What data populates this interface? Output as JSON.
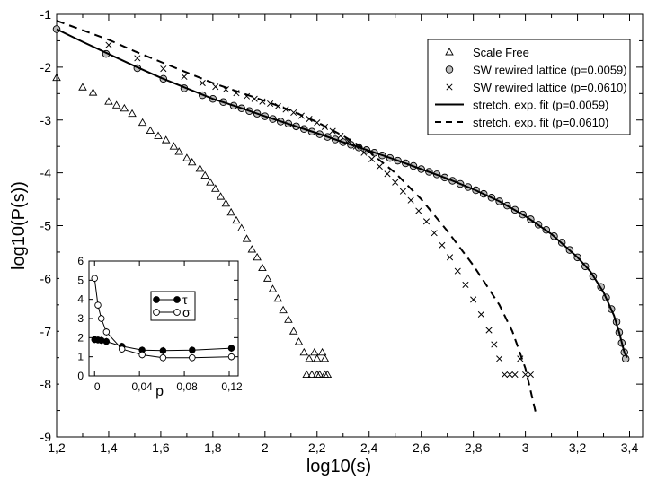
{
  "chart_data": [
    {
      "type": "scatter",
      "title": "",
      "xlabel": "log10(s)",
      "ylabel": "log10(P(s))",
      "xlim": [
        1.2,
        3.45
      ],
      "ylim": [
        -9,
        -1
      ],
      "xticks": [
        "1,2",
        "1,4",
        "1,6",
        "1,8",
        "2",
        "2,2",
        "2,4",
        "2,6",
        "2,8",
        "3",
        "3,2",
        "3,4"
      ],
      "yticks": [
        "-1",
        "-2",
        "-3",
        "-4",
        "-5",
        "-6",
        "-7",
        "-8",
        "-9"
      ],
      "legend_position": "top-right",
      "series": [
        {
          "name": "Scale Free",
          "marker": "triangle",
          "points": [
            [
              1.2,
              -2.2
            ],
            [
              1.3,
              -2.38
            ],
            [
              1.34,
              -2.48
            ],
            [
              1.4,
              -2.65
            ],
            [
              1.43,
              -2.72
            ],
            [
              1.46,
              -2.78
            ],
            [
              1.49,
              -2.88
            ],
            [
              1.53,
              -3.05
            ],
            [
              1.56,
              -3.2
            ],
            [
              1.59,
              -3.3
            ],
            [
              1.62,
              -3.38
            ],
            [
              1.65,
              -3.5
            ],
            [
              1.67,
              -3.6
            ],
            [
              1.7,
              -3.72
            ],
            [
              1.72,
              -3.8
            ],
            [
              1.75,
              -3.92
            ],
            [
              1.77,
              -4.05
            ],
            [
              1.79,
              -4.18
            ],
            [
              1.81,
              -4.3
            ],
            [
              1.83,
              -4.45
            ],
            [
              1.85,
              -4.58
            ],
            [
              1.87,
              -4.75
            ],
            [
              1.89,
              -4.9
            ],
            [
              1.91,
              -5.05
            ],
            [
              1.93,
              -5.25
            ],
            [
              1.95,
              -5.45
            ],
            [
              1.97,
              -5.6
            ],
            [
              1.99,
              -5.8
            ],
            [
              2.01,
              -6.0
            ],
            [
              2.03,
              -6.2
            ],
            [
              2.05,
              -6.38
            ],
            [
              2.07,
              -6.6
            ],
            [
              2.09,
              -6.78
            ],
            [
              2.11,
              -7.0
            ],
            [
              2.13,
              -7.2
            ],
            [
              2.15,
              -7.4
            ],
            [
              2.17,
              -7.52
            ],
            [
              2.19,
              -7.4
            ],
            [
              2.2,
              -7.52
            ],
            [
              2.22,
              -7.4
            ],
            [
              2.23,
              -7.52
            ],
            [
              2.16,
              -7.82
            ],
            [
              2.18,
              -7.82
            ],
            [
              2.2,
              -7.82
            ],
            [
              2.21,
              -7.82
            ],
            [
              2.23,
              -7.82
            ],
            [
              2.24,
              -7.82
            ]
          ]
        },
        {
          "name": "SW rewired lattice (p=0.0059)",
          "marker": "circle",
          "points": [
            [
              1.2,
              -1.28
            ],
            [
              1.39,
              -1.75
            ],
            [
              1.51,
              -2.02
            ],
            [
              1.61,
              -2.22
            ],
            [
              1.69,
              -2.4
            ],
            [
              1.76,
              -2.53
            ],
            [
              1.8,
              -2.6
            ],
            [
              1.84,
              -2.66
            ],
            [
              1.88,
              -2.73
            ],
            [
              1.91,
              -2.78
            ],
            [
              1.94,
              -2.83
            ],
            [
              1.97,
              -2.88
            ],
            [
              2.0,
              -2.93
            ],
            [
              2.03,
              -2.98
            ],
            [
              2.06,
              -3.03
            ],
            [
              2.09,
              -3.07
            ],
            [
              2.12,
              -3.12
            ],
            [
              2.15,
              -3.17
            ],
            [
              2.18,
              -3.22
            ],
            [
              2.21,
              -3.27
            ],
            [
              2.24,
              -3.32
            ],
            [
              2.27,
              -3.37
            ],
            [
              2.3,
              -3.42
            ],
            [
              2.33,
              -3.47
            ],
            [
              2.36,
              -3.52
            ],
            [
              2.39,
              -3.57
            ],
            [
              2.42,
              -3.62
            ],
            [
              2.45,
              -3.67
            ],
            [
              2.48,
              -3.72
            ],
            [
              2.51,
              -3.77
            ],
            [
              2.54,
              -3.82
            ],
            [
              2.57,
              -3.87
            ],
            [
              2.6,
              -3.93
            ],
            [
              2.63,
              -3.98
            ],
            [
              2.66,
              -4.03
            ],
            [
              2.69,
              -4.09
            ],
            [
              2.72,
              -4.15
            ],
            [
              2.75,
              -4.21
            ],
            [
              2.78,
              -4.27
            ],
            [
              2.81,
              -4.33
            ],
            [
              2.84,
              -4.4
            ],
            [
              2.87,
              -4.47
            ],
            [
              2.9,
              -4.54
            ],
            [
              2.93,
              -4.62
            ],
            [
              2.96,
              -4.7
            ],
            [
              2.99,
              -4.79
            ],
            [
              3.02,
              -4.88
            ],
            [
              3.05,
              -4.98
            ],
            [
              3.08,
              -5.08
            ],
            [
              3.11,
              -5.2
            ],
            [
              3.14,
              -5.32
            ],
            [
              3.17,
              -5.46
            ],
            [
              3.2,
              -5.6
            ],
            [
              3.23,
              -5.77
            ],
            [
              3.26,
              -5.96
            ],
            [
              3.29,
              -6.16
            ],
            [
              3.31,
              -6.36
            ],
            [
              3.33,
              -6.58
            ],
            [
              3.35,
              -6.82
            ],
            [
              3.36,
              -7.02
            ],
            [
              3.37,
              -7.22
            ],
            [
              3.38,
              -7.4
            ],
            [
              3.385,
              -7.52
            ]
          ]
        },
        {
          "name": "SW rewired lattice (p=0.0610)",
          "marker": "cross",
          "points": [
            [
              1.4,
              -1.58
            ],
            [
              1.51,
              -1.83
            ],
            [
              1.61,
              -2.03
            ],
            [
              1.69,
              -2.18
            ],
            [
              1.76,
              -2.3
            ],
            [
              1.81,
              -2.37
            ],
            [
              1.85,
              -2.42
            ],
            [
              1.89,
              -2.49
            ],
            [
              1.93,
              -2.55
            ],
            [
              1.96,
              -2.6
            ],
            [
              1.99,
              -2.65
            ],
            [
              2.02,
              -2.69
            ],
            [
              2.05,
              -2.74
            ],
            [
              2.08,
              -2.8
            ],
            [
              2.11,
              -2.86
            ],
            [
              2.14,
              -2.92
            ],
            [
              2.17,
              -2.98
            ],
            [
              2.2,
              -3.05
            ],
            [
              2.23,
              -3.13
            ],
            [
              2.26,
              -3.21
            ],
            [
              2.29,
              -3.3
            ],
            [
              2.32,
              -3.4
            ],
            [
              2.35,
              -3.5
            ],
            [
              2.38,
              -3.62
            ],
            [
              2.41,
              -3.74
            ],
            [
              2.44,
              -3.88
            ],
            [
              2.47,
              -4.02
            ],
            [
              2.5,
              -4.18
            ],
            [
              2.53,
              -4.35
            ],
            [
              2.56,
              -4.52
            ],
            [
              2.59,
              -4.72
            ],
            [
              2.62,
              -4.92
            ],
            [
              2.65,
              -5.14
            ],
            [
              2.68,
              -5.37
            ],
            [
              2.71,
              -5.6
            ],
            [
              2.74,
              -5.86
            ],
            [
              2.77,
              -6.12
            ],
            [
              2.8,
              -6.4
            ],
            [
              2.83,
              -6.68
            ],
            [
              2.86,
              -6.98
            ],
            [
              2.88,
              -7.25
            ],
            [
              2.9,
              -7.52
            ],
            [
              2.92,
              -7.82
            ],
            [
              2.94,
              -7.82
            ],
            [
              2.96,
              -7.82
            ],
            [
              2.98,
              -7.52
            ],
            [
              3.0,
              -7.82
            ],
            [
              3.02,
              -7.82
            ]
          ]
        },
        {
          "name": "stretch. exp. fit (p=0.0059)",
          "line": "solid",
          "points": [
            [
              1.2,
              -1.28
            ],
            [
              1.3,
              -1.52
            ],
            [
              1.4,
              -1.75
            ],
            [
              1.5,
              -1.98
            ],
            [
              1.6,
              -2.2
            ],
            [
              1.7,
              -2.4
            ],
            [
              1.8,
              -2.6
            ],
            [
              1.9,
              -2.76
            ],
            [
              2.0,
              -2.93
            ],
            [
              2.1,
              -3.09
            ],
            [
              2.2,
              -3.25
            ],
            [
              2.3,
              -3.42
            ],
            [
              2.4,
              -3.58
            ],
            [
              2.5,
              -3.75
            ],
            [
              2.6,
              -3.93
            ],
            [
              2.7,
              -4.11
            ],
            [
              2.8,
              -4.31
            ],
            [
              2.9,
              -4.54
            ],
            [
              3.0,
              -4.82
            ],
            [
              3.1,
              -5.16
            ],
            [
              3.2,
              -5.6
            ],
            [
              3.25,
              -5.87
            ],
            [
              3.3,
              -6.26
            ],
            [
              3.34,
              -6.7
            ],
            [
              3.36,
              -7.02
            ],
            [
              3.38,
              -7.4
            ],
            [
              3.39,
              -7.5
            ]
          ]
        },
        {
          "name": "stretch. exp. fit (p=0.0610)",
          "line": "dashed",
          "points": [
            [
              1.2,
              -1.12
            ],
            [
              1.3,
              -1.3
            ],
            [
              1.4,
              -1.48
            ],
            [
              1.5,
              -1.7
            ],
            [
              1.6,
              -1.9
            ],
            [
              1.7,
              -2.1
            ],
            [
              1.8,
              -2.3
            ],
            [
              1.9,
              -2.47
            ],
            [
              2.0,
              -2.64
            ],
            [
              2.1,
              -2.82
            ],
            [
              2.2,
              -3.04
            ],
            [
              2.3,
              -3.3
            ],
            [
              2.4,
              -3.6
            ],
            [
              2.5,
              -4.0
            ],
            [
              2.6,
              -4.5
            ],
            [
              2.7,
              -5.1
            ],
            [
              2.8,
              -5.75
            ],
            [
              2.9,
              -6.5
            ],
            [
              2.95,
              -7.0
            ],
            [
              3.0,
              -7.7
            ],
            [
              3.04,
              -8.55
            ]
          ]
        }
      ]
    },
    {
      "type": "line",
      "title": "",
      "xlabel": "p",
      "ylabel": "",
      "xlim": [
        -0.005,
        0.128
      ],
      "ylim": [
        0,
        6
      ],
      "xticks": [
        "0",
        "0,04",
        "0,08",
        "0,12"
      ],
      "yticks": [
        "0",
        "1",
        "2",
        "3",
        "4",
        "5",
        "6"
      ],
      "legend_position": "top-right",
      "series": [
        {
          "name": "τ",
          "marker": "filled-circle",
          "x": [
            0,
            0.003,
            0.006,
            0.0105,
            0.0244,
            0.0424,
            0.061,
            0.087,
            0.122
          ],
          "values": [
            1.9,
            1.88,
            1.86,
            1.8,
            1.55,
            1.35,
            1.32,
            1.35,
            1.45
          ]
        },
        {
          "name": "σ",
          "marker": "open-circle",
          "x": [
            0,
            0.003,
            0.006,
            0.0105,
            0.0244,
            0.0424,
            0.061,
            0.087,
            0.122
          ],
          "values": [
            5.1,
            3.7,
            3.0,
            2.3,
            1.4,
            1.1,
            0.95,
            0.95,
            1.0
          ]
        }
      ]
    }
  ]
}
